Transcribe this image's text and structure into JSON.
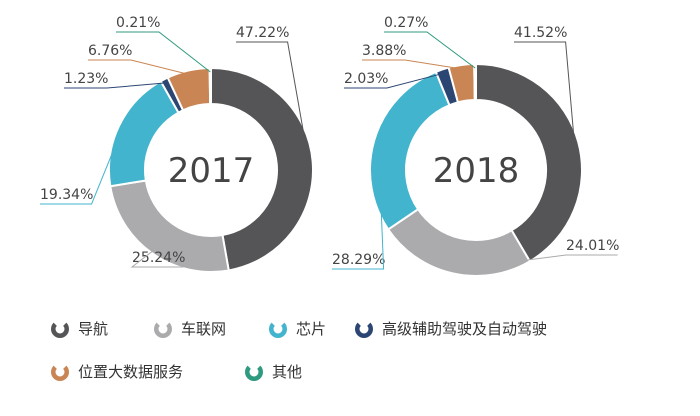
{
  "chart_data": [
    {
      "type": "donut",
      "title": "",
      "center_label": "2017",
      "series": [
        {
          "name": "导航",
          "value": 47.22,
          "label": "47.22%"
        },
        {
          "name": "车联网",
          "value": 25.24,
          "label": "25.24%"
        },
        {
          "name": "芯片",
          "value": 19.34,
          "label": "19.34%"
        },
        {
          "name": "高级辅助驾驶及自动驾驶",
          "value": 1.23,
          "label": "1.23%"
        },
        {
          "name": "位置大数据服务",
          "value": 6.76,
          "label": "6.76%"
        },
        {
          "name": "其他",
          "value": 0.21,
          "label": "0.21%"
        }
      ]
    },
    {
      "type": "donut",
      "title": "",
      "center_label": "2018",
      "series": [
        {
          "name": "导航",
          "value": 41.52,
          "label": "41.52%"
        },
        {
          "name": "车联网",
          "value": 24.01,
          "label": "24.01%"
        },
        {
          "name": "芯片",
          "value": 28.29,
          "label": "28.29%"
        },
        {
          "name": "高级辅助驾驶及自动驾驶",
          "value": 2.03,
          "label": "2.03%"
        },
        {
          "name": "位置大数据服务",
          "value": 3.88,
          "label": "3.88%"
        },
        {
          "name": "其他",
          "value": 0.27,
          "label": "0.27%"
        }
      ]
    }
  ],
  "legend": {
    "placement": "bottom",
    "items": [
      {
        "name": "导航",
        "color": "#555456"
      },
      {
        "name": "车联网",
        "color": "#ababae"
      },
      {
        "name": "芯片",
        "color": "#43b4cd"
      },
      {
        "name": "高级辅助驾驶及自动驾驶",
        "color": "#2c4673"
      },
      {
        "name": "位置大数据服务",
        "color": "#c98654"
      },
      {
        "name": "其他",
        "color": "#2f9a7f"
      }
    ]
  },
  "colors": {
    "导航": "#555456",
    "车联网": "#ababae",
    "芯片": "#43b4cd",
    "高级辅助驾驶及自动驾驶": "#2c4673",
    "位置大数据服务": "#c98654",
    "其他": "#2f9a7f"
  }
}
